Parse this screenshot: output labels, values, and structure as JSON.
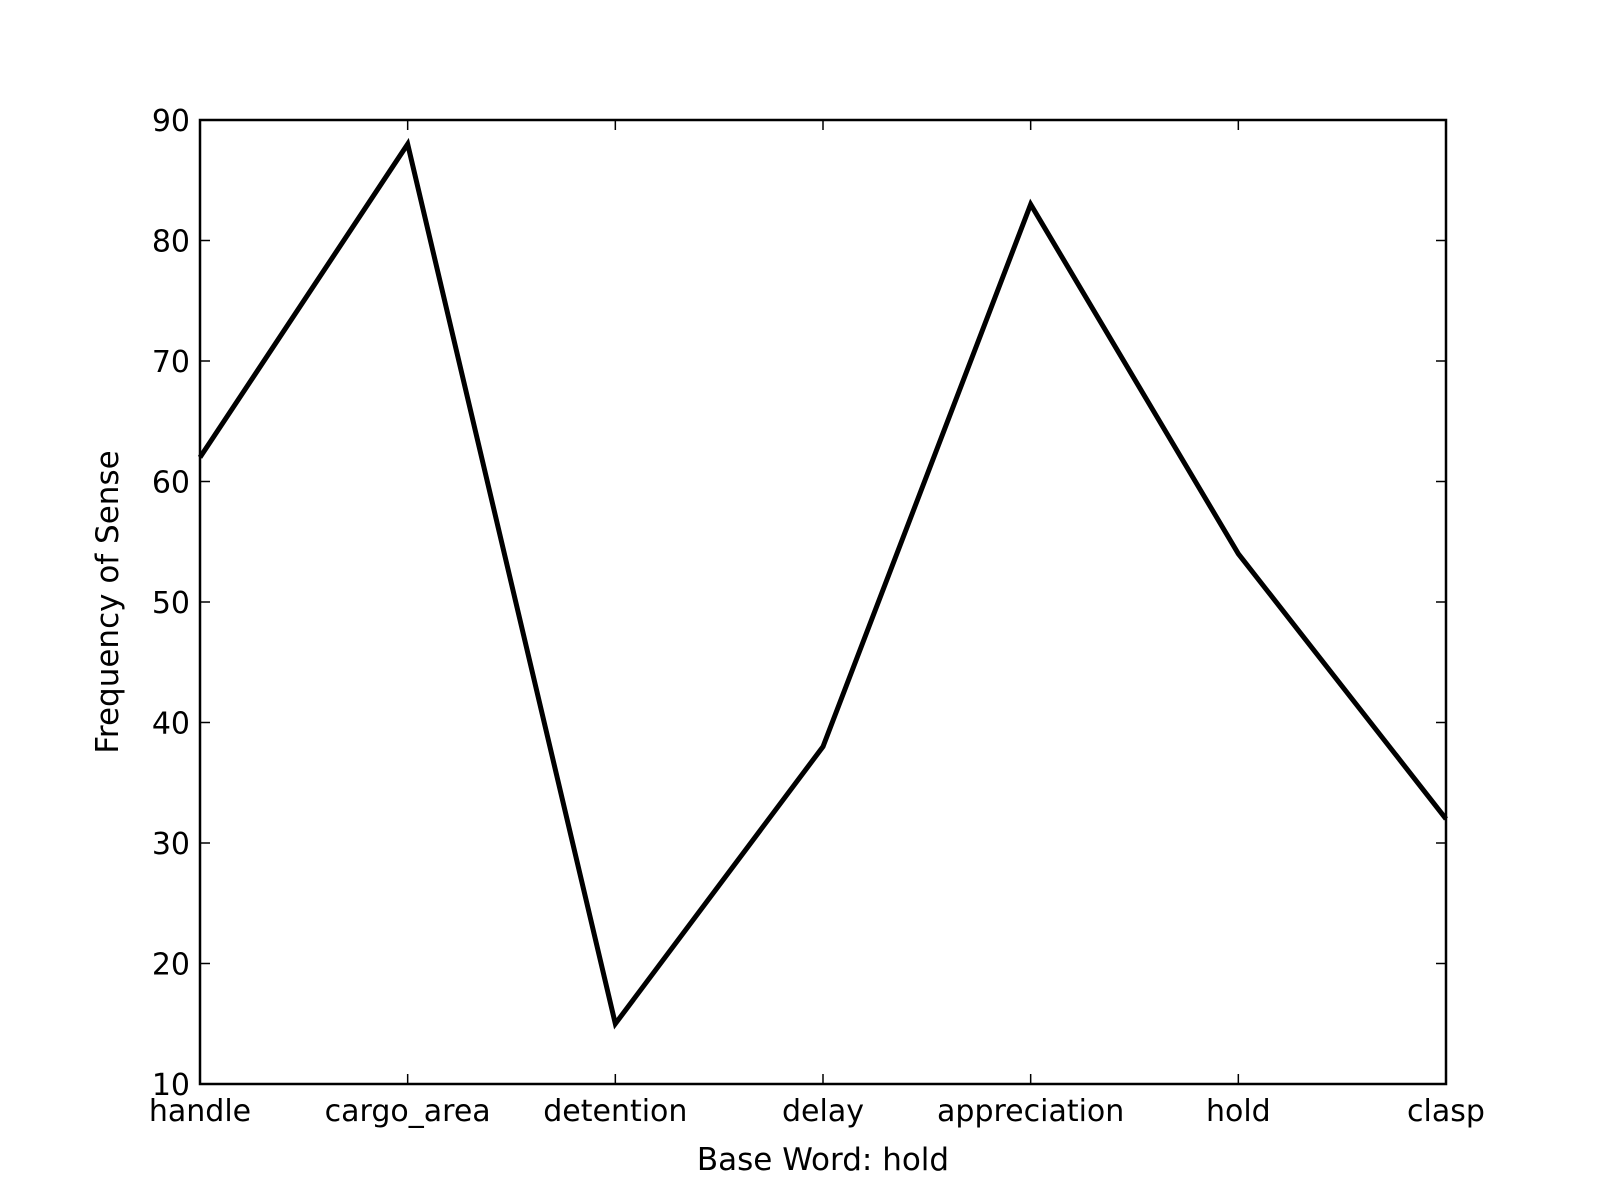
{
  "chart_data": {
    "type": "line",
    "categories": [
      "handle",
      "cargo_area",
      "detention",
      "delay",
      "appreciation",
      "hold",
      "clasp"
    ],
    "series": [
      {
        "values": [
          62,
          88,
          15,
          38,
          83,
          54,
          32
        ]
      }
    ],
    "xlabel": "Base Word: hold",
    "ylabel": "Frequency of Sense",
    "ylim": [
      10,
      90
    ],
    "yticks": [
      10,
      20,
      30,
      40,
      50,
      60,
      70,
      80,
      90
    ],
    "grid": false,
    "line_color": "#000000"
  }
}
